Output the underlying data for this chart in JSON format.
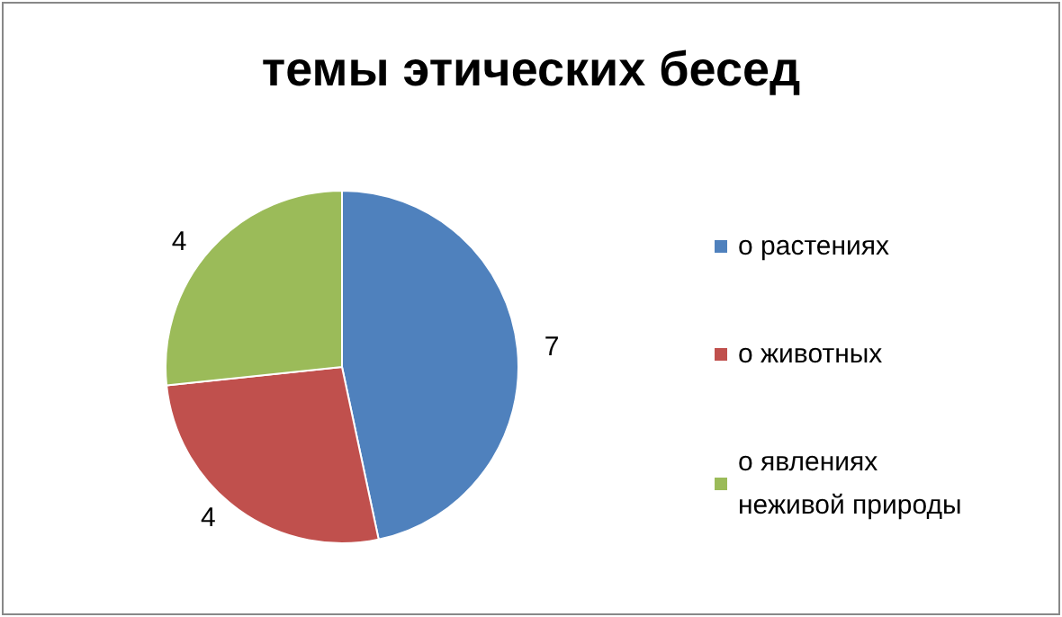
{
  "chart_data": {
    "type": "pie",
    "title": "темы этических бесед",
    "categories": [
      "о растениях",
      "о животных",
      "о явлениях неживой природы"
    ],
    "values": [
      7,
      4,
      4
    ],
    "colors": [
      "#4f81bd",
      "#c0504d",
      "#9bbb59"
    ],
    "data_labels": true,
    "legend": "right"
  }
}
